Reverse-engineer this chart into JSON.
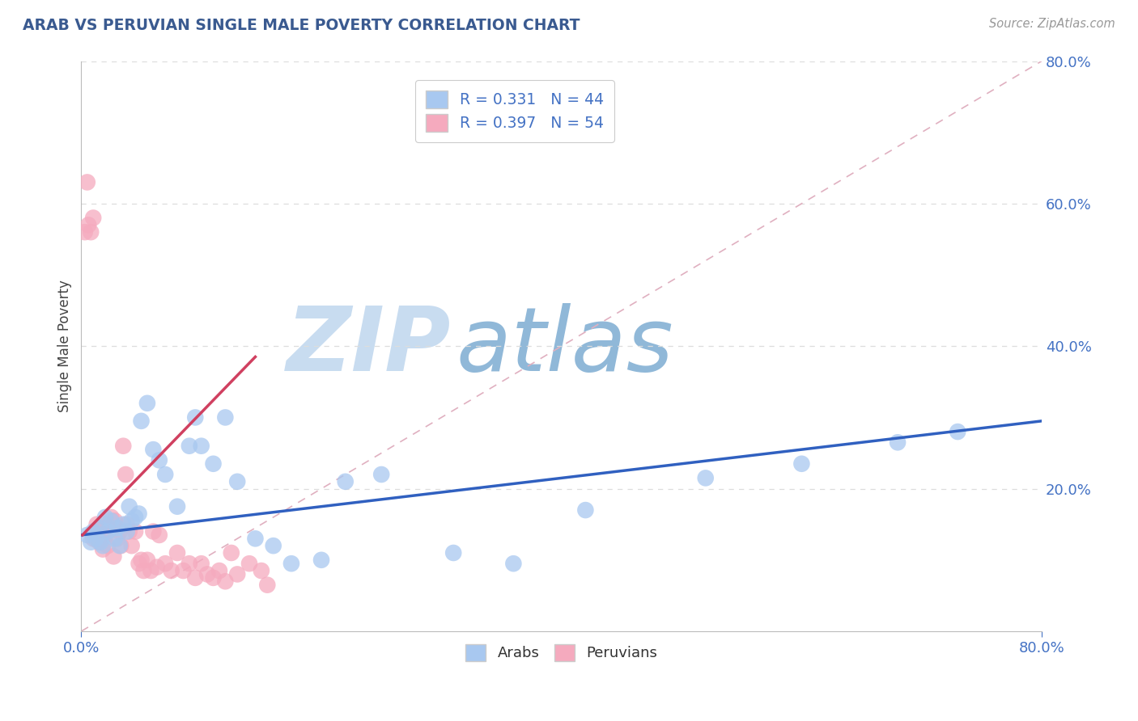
{
  "title": "ARAB VS PERUVIAN SINGLE MALE POVERTY CORRELATION CHART",
  "source_text": "Source: ZipAtlas.com",
  "ylabel": "Single Male Poverty",
  "xlim": [
    0.0,
    0.8
  ],
  "ylim": [
    0.0,
    0.8
  ],
  "ytick_positions": [
    0.2,
    0.4,
    0.6,
    0.8
  ],
  "ytick_labels": [
    "20.0%",
    "40.0%",
    "60.0%",
    "80.0%"
  ],
  "xtick_positions": [
    0.0,
    0.8
  ],
  "xtick_labels": [
    "0.0%",
    "80.0%"
  ],
  "arab_R": 0.331,
  "arab_N": 44,
  "peruvian_R": 0.397,
  "peruvian_N": 54,
  "arab_color": "#A8C8F0",
  "peruvian_color": "#F5AABE",
  "arab_line_color": "#3060C0",
  "peruvian_line_color": "#D04060",
  "diag_line_color": "#E0B0C0",
  "tick_color": "#4472C4",
  "title_color": "#3A5A90",
  "source_color": "#999999",
  "background_color": "#FFFFFF",
  "watermark_zip_color": "#C8DCF0",
  "watermark_atlas_color": "#90B8D8",
  "grid_color": "#DDDDDD",
  "legend_border_color": "#CCCCCC",
  "arab_line_x0": 0.0,
  "arab_line_x1": 0.8,
  "arab_line_y0": 0.135,
  "arab_line_y1": 0.295,
  "peruvian_line_x0": 0.001,
  "peruvian_line_x1": 0.145,
  "peruvian_line_y0": 0.135,
  "peruvian_line_y1": 0.385,
  "arab_x": [
    0.005,
    0.008,
    0.01,
    0.012,
    0.015,
    0.016,
    0.018,
    0.02,
    0.022,
    0.025,
    0.028,
    0.03,
    0.032,
    0.035,
    0.038,
    0.04,
    0.042,
    0.045,
    0.048,
    0.05,
    0.055,
    0.06,
    0.065,
    0.07,
    0.08,
    0.09,
    0.095,
    0.1,
    0.11,
    0.12,
    0.13,
    0.145,
    0.16,
    0.175,
    0.2,
    0.22,
    0.25,
    0.31,
    0.36,
    0.42,
    0.52,
    0.6,
    0.68,
    0.73
  ],
  "arab_y": [
    0.135,
    0.125,
    0.14,
    0.13,
    0.145,
    0.125,
    0.12,
    0.16,
    0.14,
    0.155,
    0.13,
    0.145,
    0.12,
    0.15,
    0.14,
    0.175,
    0.155,
    0.16,
    0.165,
    0.295,
    0.32,
    0.255,
    0.24,
    0.22,
    0.175,
    0.26,
    0.3,
    0.26,
    0.235,
    0.3,
    0.21,
    0.13,
    0.12,
    0.095,
    0.1,
    0.21,
    0.22,
    0.11,
    0.095,
    0.17,
    0.215,
    0.235,
    0.265,
    0.28
  ],
  "peruvian_x": [
    0.003,
    0.005,
    0.006,
    0.008,
    0.01,
    0.01,
    0.012,
    0.013,
    0.014,
    0.015,
    0.016,
    0.017,
    0.018,
    0.019,
    0.02,
    0.02,
    0.022,
    0.023,
    0.025,
    0.027,
    0.028,
    0.03,
    0.032,
    0.033,
    0.035,
    0.037,
    0.038,
    0.04,
    0.042,
    0.045,
    0.048,
    0.05,
    0.052,
    0.055,
    0.058,
    0.06,
    0.063,
    0.065,
    0.07,
    0.075,
    0.08,
    0.085,
    0.09,
    0.095,
    0.1,
    0.105,
    0.11,
    0.115,
    0.12,
    0.125,
    0.13,
    0.14,
    0.15,
    0.155
  ],
  "peruvian_y": [
    0.56,
    0.63,
    0.57,
    0.56,
    0.58,
    0.13,
    0.14,
    0.15,
    0.135,
    0.125,
    0.13,
    0.145,
    0.115,
    0.14,
    0.135,
    0.15,
    0.12,
    0.145,
    0.16,
    0.105,
    0.155,
    0.13,
    0.14,
    0.12,
    0.26,
    0.22,
    0.15,
    0.14,
    0.12,
    0.14,
    0.095,
    0.1,
    0.085,
    0.1,
    0.085,
    0.14,
    0.09,
    0.135,
    0.095,
    0.085,
    0.11,
    0.085,
    0.095,
    0.075,
    0.095,
    0.08,
    0.075,
    0.085,
    0.07,
    0.11,
    0.08,
    0.095,
    0.085,
    0.065
  ]
}
